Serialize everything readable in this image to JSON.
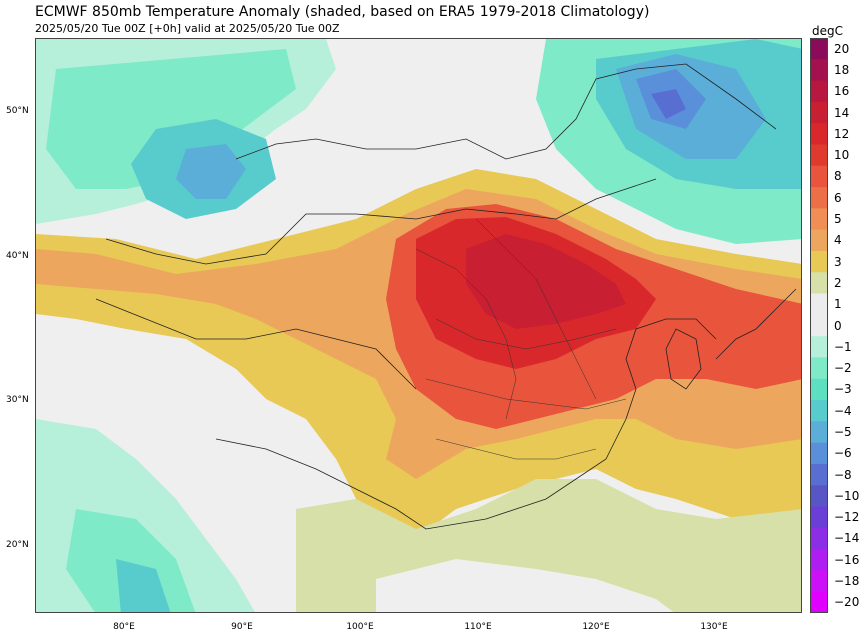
{
  "title": "ECMWF 850mb Temperature Anomaly (shaded, based on ERA5 1979-2018 Climatology)",
  "subtitle": "2025/05/20 Tue 00Z [+0h] valid at 2025/05/20 Tue 00Z",
  "colorbar": {
    "unit": "degC",
    "levels": [
      "20",
      "18",
      "16",
      "14",
      "12",
      "10",
      "8",
      "6",
      "5",
      "4",
      "3",
      "2",
      "1",
      "0",
      "−1",
      "−2",
      "−3",
      "−4",
      "−5",
      "−6",
      "−8",
      "−10",
      "−12",
      "−14",
      "−16",
      "−18",
      "−20"
    ],
    "colors": [
      "#8c0a5a",
      "#a3124f",
      "#b81840",
      "#c81f33",
      "#d9282b",
      "#e03a2f",
      "#e8553c",
      "#ec6f48",
      "#f08e55",
      "#eda65e",
      "#e8c955",
      "#d6e0a8",
      "#ececec",
      "#ececec",
      "#b6f0da",
      "#7eeac8",
      "#5ee0c0",
      "#58cccc",
      "#5aaed8",
      "#5a90da",
      "#586ed0",
      "#5856c6",
      "#6c3ed8",
      "#8c2ee6",
      "#ae1ef0",
      "#cc10f8",
      "#e000ff"
    ]
  },
  "axes": {
    "lat_labels": [
      "50°N",
      "40°N",
      "30°N",
      "20°N"
    ],
    "lon_labels": [
      "80°E",
      "90°E",
      "100°E",
      "110°E",
      "120°E",
      "130°E"
    ]
  }
}
